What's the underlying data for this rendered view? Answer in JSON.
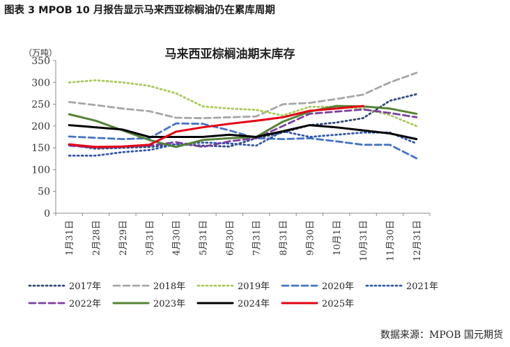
{
  "figure": {
    "caption": "图表 3 MPOB 10 月报告显示马来西亚棕榈油仍在累库周期",
    "source": "数据来源：MPOB 国元期货"
  },
  "chart_data": {
    "type": "line",
    "title": "马来西亚棕榈油期末库存",
    "ylabel": "（万吨）",
    "xlabel": "",
    "ylim": [
      0,
      350
    ],
    "yticks": [
      0,
      50,
      100,
      150,
      200,
      250,
      300,
      350
    ],
    "grid": false,
    "legend_position": "bottom",
    "categories": [
      "1月31日",
      "2月28日",
      "2月29日",
      "3月31日",
      "4月30日",
      "5月31日",
      "6月30日",
      "7月31日",
      "8月31日",
      "9月30日",
      "10月1日",
      "10月31日",
      "11月30日",
      "12月31日"
    ],
    "series": [
      {
        "name": "2017年",
        "color": "#2e4a7a",
        "dash": "dot",
        "values": [
          157,
          148,
          150,
          152,
          158,
          155,
          153,
          172,
          185,
          202,
          208,
          218,
          258,
          273
        ]
      },
      {
        "name": "2018年",
        "color": "#a6a6a6",
        "dash": "dash",
        "values": [
          255,
          248,
          240,
          234,
          219,
          218,
          220,
          222,
          250,
          253,
          262,
          272,
          300,
          322
        ]
      },
      {
        "name": "2019年",
        "color": "#a9c95a",
        "dash": "dot",
        "values": [
          300,
          305,
          300,
          292,
          275,
          245,
          240,
          237,
          224,
          244,
          244,
          240,
          225,
          200
        ]
      },
      {
        "name": "2020年",
        "color": "#4472c4",
        "dash": "dash",
        "values": [
          176,
          173,
          170,
          172,
          206,
          205,
          190,
          172,
          170,
          172,
          165,
          157,
          157,
          126
        ]
      },
      {
        "name": "2021年",
        "color": "#3056a8",
        "dash": "dot",
        "values": [
          132,
          132,
          140,
          145,
          158,
          162,
          160,
          155,
          188,
          175,
          180,
          185,
          185,
          160
        ]
      },
      {
        "name": "2022年",
        "color": "#7a3fa0",
        "dash": "dash",
        "values": [
          155,
          150,
          152,
          155,
          163,
          152,
          165,
          172,
          200,
          228,
          233,
          238,
          230,
          220
        ]
      },
      {
        "name": "2023年",
        "color": "#548235",
        "dash": "solid",
        "values": [
          227,
          212,
          190,
          168,
          152,
          168,
          172,
          175,
          210,
          233,
          246,
          245,
          240,
          228
        ]
      },
      {
        "name": "2024年",
        "color": "#000000",
        "dash": "solid",
        "values": [
          202,
          197,
          192,
          175,
          175,
          175,
          180,
          175,
          188,
          202,
          197,
          190,
          183,
          170
        ]
      },
      {
        "name": "2025年",
        "color": "#e60012",
        "dash": "solid",
        "values": [
          158,
          152,
          153,
          157,
          187,
          197,
          205,
          212,
          220,
          235,
          240,
          246,
          null,
          null
        ]
      }
    ]
  }
}
